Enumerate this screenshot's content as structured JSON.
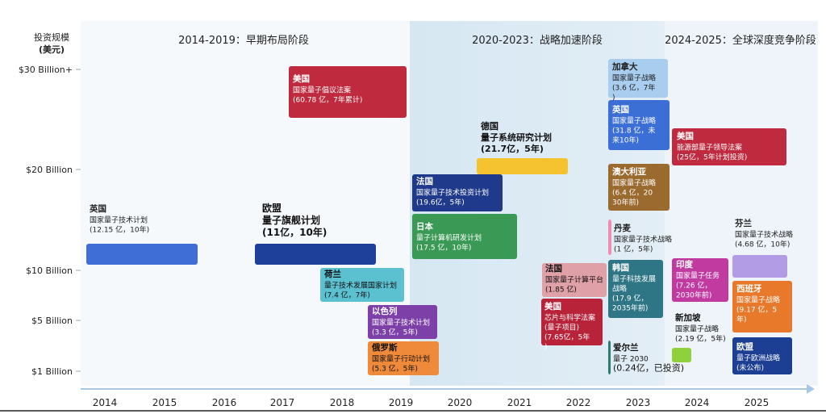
{
  "chart_data": {
    "type": "timeline",
    "y_axis_title": [
      "投资规模",
      "(美元)"
    ],
    "y_ticks": [
      "$30 Billion+",
      "$20 Billion",
      "$10 Billion",
      "$5 Billion",
      "$1 Billion"
    ],
    "years": [
      2014,
      2015,
      2016,
      2017,
      2018,
      2019,
      2020,
      2021,
      2022,
      2023,
      2024,
      2025
    ],
    "phases": [
      {
        "label": "2014-2019：早期布局阶段",
        "start": 2014,
        "end": 2019
      },
      {
        "label": "2020-2023：战略加速阶段",
        "start": 2020,
        "end": 2023
      },
      {
        "label": "2024-2025：全球深度竞争阶段",
        "start": 2024,
        "end": 2025
      }
    ],
    "programs": [
      {
        "country": "英国",
        "name": "国家量子技术计划",
        "detail": "(12.15 亿，10年)",
        "year": 2014,
        "color": "#3f6fd6"
      },
      {
        "country": "欧盟",
        "name": "量子旗舰计划",
        "detail": "(11亿，10年)",
        "year": 2018,
        "color": "#1e3f9a"
      },
      {
        "country": "美国",
        "name": "国家量子倡议法案",
        "detail": "(60.78 亿，7年累计)",
        "year": 2018,
        "color": "#c02a3e"
      },
      {
        "country": "荷兰",
        "name": "量子技术发展国家计划",
        "detail": "(7.4 亿，7年)",
        "year": 2019,
        "color": "#5bc0d0"
      },
      {
        "country": "以色列",
        "name": "国家量子技术计划",
        "detail": "(3.3 亿，5年)",
        "year": 2019,
        "color": "#7d3fa8"
      },
      {
        "country": "俄罗斯",
        "name": "国家量子行动计划",
        "detail": "(5.3 亿，5年)",
        "year": 2019,
        "color": "#ef8a3a"
      },
      {
        "country": "德国",
        "name": "量子系统研究计划",
        "detail": "(21.7亿，5年)",
        "year": 2021,
        "color": "#f5c230"
      },
      {
        "country": "法国",
        "name": "国家量子技术投资计划",
        "detail": "(19.6亿，5年)",
        "year": 2021,
        "color": "#1f3a8a"
      },
      {
        "country": "日本",
        "name": "量子计算机研发计划",
        "detail": "(17.5 亿，10年)",
        "year": 2021,
        "color": "#3a9a55"
      },
      {
        "country": "法国",
        "name": "国家量子计算平台",
        "detail": "(1.85 亿)",
        "year": 2022,
        "color": "#e0a0a8"
      },
      {
        "country": "美国",
        "name": "芯片与科学法案(量子项目)",
        "detail": "(7.65亿，5年)",
        "year": 2022,
        "color": "#b8233a"
      },
      {
        "country": "加拿大",
        "name": "国家量子战略",
        "detail": "(3.6 亿，7年)",
        "year": 2023,
        "color": "#a8cdef"
      },
      {
        "country": "英国",
        "name": "国家量子战略",
        "detail": "(31.8 亿，未来10年)",
        "year": 2023,
        "color": "#3b6fd6"
      },
      {
        "country": "澳大利亚",
        "name": "国家量子战略",
        "detail": "(6.4 亿，2030年前)",
        "year": 2023,
        "color": "#9b6a2e"
      },
      {
        "country": "丹麦",
        "name": "国家量子技术战略",
        "detail": "(1 亿，5年)",
        "year": 2023,
        "color": "#f08cb0"
      },
      {
        "country": "韩国",
        "name": "量子科技发展战略",
        "detail": "(17.9 亿，2035年前)",
        "year": 2023,
        "color": "#2e7585"
      },
      {
        "country": "爱尔兰",
        "name": "量子 2030",
        "detail": "(0.24亿，已投资)",
        "year": 2023,
        "color": "#2e7a6e"
      },
      {
        "country": "美国",
        "name": "能源部量子领导法案",
        "detail": "(25亿，5年计划投资)",
        "year": 2024,
        "color": "#c02a3e"
      },
      {
        "country": "印度",
        "name": "国家量子任务",
        "detail": "(7.26 亿，2030年前)",
        "year": 2024,
        "color": "#c03aa0"
      },
      {
        "country": "新加坡",
        "name": "国家量子战略",
        "detail": "(2.19 亿，5年)",
        "year": 2024,
        "color": "#8fd13c"
      },
      {
        "country": "芬兰",
        "name": "国家量子技术战略",
        "detail": "(4.68 亿，10年)",
        "year": 2025,
        "color": "#b39ce6"
      },
      {
        "country": "西班牙",
        "name": "国家量子战略",
        "detail": "(9.17 亿，5年)",
        "year": 2025,
        "color": "#e8782a"
      },
      {
        "country": "欧盟",
        "name": "量子欧洲战略",
        "detail": "(未公布)",
        "year": 2025,
        "color": "#1c3f94"
      }
    ]
  }
}
